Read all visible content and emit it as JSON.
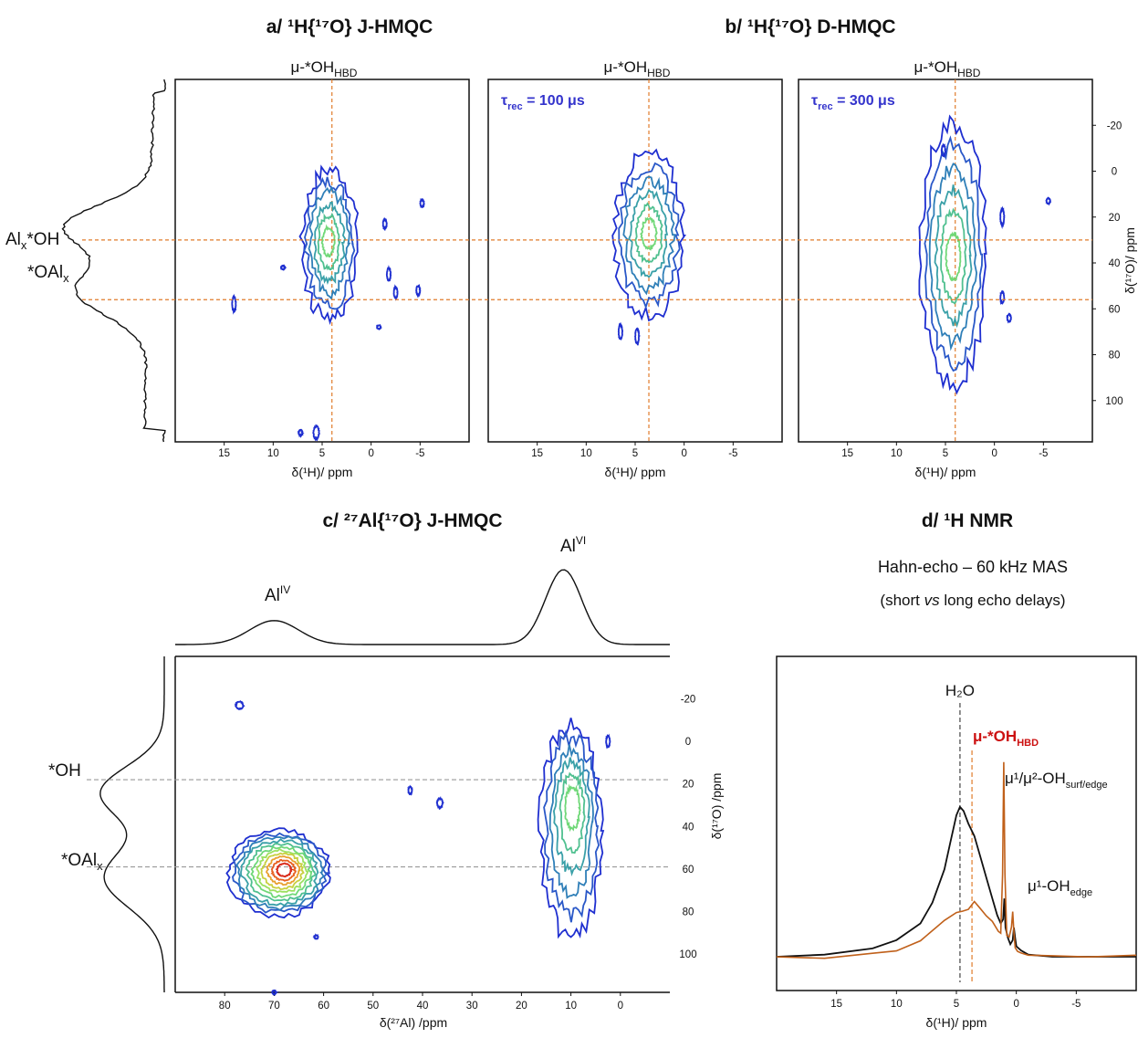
{
  "panel_titles": {
    "a": "a/ ¹H{¹⁷O} J-HMQC",
    "b": "b/ ¹H{¹⁷O} D-HMQC",
    "c": "c/ ²⁷Al{¹⁷O} J-HMQC",
    "d": "d/ ¹H NMR"
  },
  "d_subtitle_1": "Hahn-echo – 60 kHz MAS",
  "d_subtitle_2_pre": "(short ",
  "d_subtitle_2_em": "vs",
  "d_subtitle_2_post": " long echo delays)",
  "colors": {
    "guide_orange": "#e07b2a",
    "guide_gray": "#999999",
    "spectrum_orange": "#c0601a",
    "label_red": "#cc1111",
    "tau_blue": "#3333cc",
    "contour_levels": [
      "#1f2fd0",
      "#2a58c8",
      "#2f7fb8",
      "#3aa0a8",
      "#50c090",
      "#70d878",
      "#9ce060",
      "#c8d040",
      "#e8a030",
      "#e86020",
      "#d82818"
    ]
  },
  "chart_data": [
    {
      "type": "heatmap",
      "panel": "a",
      "title": "a/ ¹H{¹⁷O} J-HMQC",
      "column_label": "μ-*OH",
      "column_label_sub": "HBD",
      "xlabel": "δ(¹H)/ ppm",
      "xticks": [
        15,
        10,
        5,
        0,
        -5
      ],
      "xlim": [
        20,
        -10
      ],
      "ylim": [
        -40,
        118
      ],
      "guides": {
        "x": 4,
        "y": [
          30,
          56
        ]
      },
      "peaks": [
        {
          "x": 4.2,
          "y": 30,
          "description": "main contour family centred near δ(¹H)=4.2 ppm, δ(¹⁷O)=30 ppm"
        }
      ],
      "side_labels": [
        "Al",
        "*OH",
        "*OAl"
      ],
      "side_label_subs": [
        "x",
        "x"
      ]
    },
    {
      "type": "heatmap",
      "panel": "b1",
      "title": "b/ ¹H{¹⁷O} D-HMQC",
      "column_label": "μ-*OH",
      "column_label_sub": "HBD",
      "annotation": "τ",
      "annotation_sub": "rec",
      "annotation_value": " = 100 μs",
      "xlabel": "δ(¹H)/ ppm",
      "xticks": [
        15,
        10,
        5,
        0,
        -5
      ],
      "xlim": [
        20,
        -10
      ],
      "ylim": [
        -40,
        118
      ],
      "guides": {
        "x": 3.6,
        "y": [
          30,
          56
        ]
      },
      "peaks": [
        {
          "x": 3.6,
          "y": 30
        }
      ]
    },
    {
      "type": "heatmap",
      "panel": "b2",
      "column_label": "μ-*OH",
      "column_label_sub": "HBD",
      "annotation": "τ",
      "annotation_sub": "rec",
      "annotation_value": " = 300 μs",
      "xlabel": "δ(¹H)/ ppm",
      "ylabel": "δ(¹⁷O)/ ppm",
      "xticks": [
        15,
        10,
        5,
        0,
        -5
      ],
      "yticks": [
        -20,
        0,
        20,
        40,
        60,
        80,
        100
      ],
      "xlim": [
        20,
        -10
      ],
      "ylim": [
        -40,
        118
      ],
      "guides": {
        "x": 4,
        "y": [
          30,
          56
        ]
      },
      "peaks": [
        {
          "x": 4,
          "y": 30
        },
        {
          "x": 4,
          "y": 50
        }
      ]
    },
    {
      "type": "heatmap",
      "panel": "c",
      "title": "c/ ²⁷Al{¹⁷O} J-HMQC",
      "xlabel": "δ(²⁷Al) /ppm",
      "ylabel": "δ(¹⁷O) /ppm",
      "xticks": [
        80,
        70,
        60,
        50,
        40,
        30,
        20,
        10,
        0
      ],
      "yticks": [
        -20,
        0,
        20,
        40,
        60,
        80,
        100
      ],
      "xlim": [
        90,
        -10
      ],
      "ylim": [
        -40,
        118
      ],
      "guides": {
        "y": [
          18,
          59
        ]
      },
      "peaks": [
        {
          "x": 70,
          "y": 60
        },
        {
          "x": 10,
          "y": 18
        },
        {
          "x": 10,
          "y": 59
        }
      ],
      "top_projection_labels": [
        "Al",
        "Al"
      ],
      "top_projection_sups": [
        "IV",
        "VI"
      ],
      "side_labels": [
        "*OH",
        "*OAl"
      ],
      "side_label_subs": [
        "x"
      ]
    },
    {
      "type": "line",
      "panel": "d",
      "title": "d/ ¹H NMR",
      "xlabel": "δ(¹H)/ ppm",
      "xticks": [
        15,
        10,
        5,
        0,
        -5
      ],
      "xlim": [
        20,
        -10
      ],
      "series": [
        {
          "x": [
            20,
            16,
            12,
            10,
            8,
            7,
            6,
            5.5,
            5,
            4.7,
            4.4,
            4,
            3.5,
            3,
            2.5,
            2,
            1.6,
            1.3,
            1.1,
            1.0,
            0.9,
            0.7,
            0.5,
            0.3,
            0.2,
            0.1,
            0,
            -0.4,
            -1,
            -3,
            -6,
            -10
          ],
          "values": [
            0,
            0.01,
            0.04,
            0.08,
            0.16,
            0.26,
            0.42,
            0.55,
            0.68,
            0.72,
            0.7,
            0.64,
            0.58,
            0.48,
            0.38,
            0.28,
            0.2,
            0.16,
            0.18,
            0.28,
            0.14,
            0.09,
            0.06,
            0.08,
            0.14,
            0.09,
            0.05,
            0.03,
            0.01,
            0,
            0,
            0
          ]
        },
        {
          "x": [
            20,
            16,
            12,
            10,
            8,
            6,
            5,
            4.5,
            4,
            3.5,
            3,
            2.5,
            2,
            1.5,
            1.3,
            1.15,
            1.05,
            0.95,
            0.8,
            0.6,
            0.4,
            0.3,
            0.2,
            0.1,
            -0.1,
            -0.4,
            -1,
            -3,
            -6,
            -10
          ],
          "values": [
            0,
            0,
            0.01,
            0.03,
            0.08,
            0.17,
            0.21,
            0.22,
            0.23,
            0.26,
            0.24,
            0.2,
            0.17,
            0.12,
            0.12,
            0.4,
            0.93,
            0.4,
            0.1,
            0.1,
            0.14,
            0.22,
            0.12,
            0.04,
            0.02,
            0.01,
            0,
            0,
            0,
            0
          ]
        }
      ],
      "guides": {
        "x": [
          4.7,
          3.7
        ]
      },
      "labels": {
        "h2o": "H₂O",
        "hbd_main": "μ-*OH",
        "hbd_sub": "HBD",
        "surf_edge_main": "μ¹/μ²-OH",
        "surf_edge_sub": "surf/edge",
        "edge_main": "μ¹-OH",
        "edge_sub": "edge"
      }
    }
  ]
}
